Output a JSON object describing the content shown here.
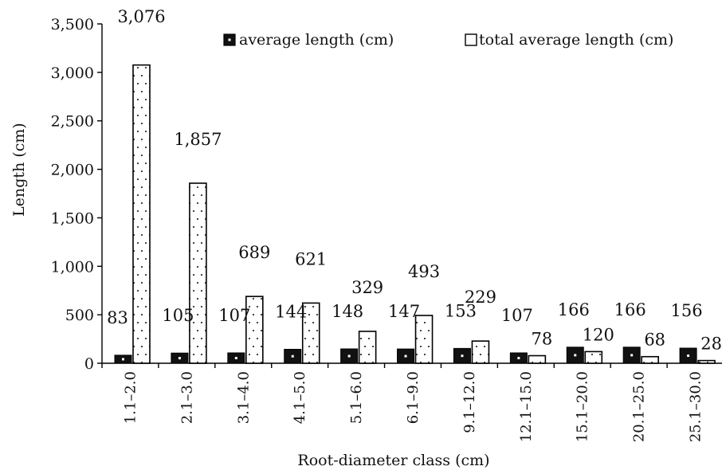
{
  "chart_data": {
    "type": "bar",
    "xlabel": "Root-diameter class (cm)",
    "ylabel": "Length (cm)",
    "ylim": [
      0,
      3500
    ],
    "yticks": [
      0,
      500,
      1000,
      1500,
      2000,
      2500,
      3000,
      3500
    ],
    "ytick_labels": [
      "0",
      "500",
      "1,000",
      "1,500",
      "2,000",
      "2,500",
      "3,000",
      "3,500"
    ],
    "grid": false,
    "legend_position": "top-right",
    "categories": [
      "1.1–2.0",
      "2.1–3.0",
      "3.1–4.0",
      "4.1–5.0",
      "5.1–6.0",
      "6.1–9.0",
      "9.1–12.0",
      "12.1–15.0",
      "15.1–20.0",
      "20.1–25.0",
      "25.1–30.0"
    ],
    "series": [
      {
        "name": "average length (cm)",
        "values": [
          83,
          105,
          107,
          144,
          148,
          147,
          153,
          107,
          166,
          166,
          156
        ],
        "labels": [
          "83",
          "105",
          "107",
          "144",
          "148",
          "147",
          "153",
          "107",
          "166",
          "166",
          "156"
        ],
        "fill": "#111111",
        "pattern": "black with single white dot"
      },
      {
        "name": "total average length (cm)",
        "values": [
          3076,
          1857,
          689,
          621,
          329,
          493,
          229,
          78,
          120,
          68,
          28
        ],
        "labels": [
          "3,076",
          "1,857",
          "689",
          "621",
          "329",
          "493",
          "229",
          "78",
          "120",
          "68",
          "28"
        ],
        "fill": "#ffffff",
        "pattern": "white with sparse black dots"
      }
    ]
  }
}
